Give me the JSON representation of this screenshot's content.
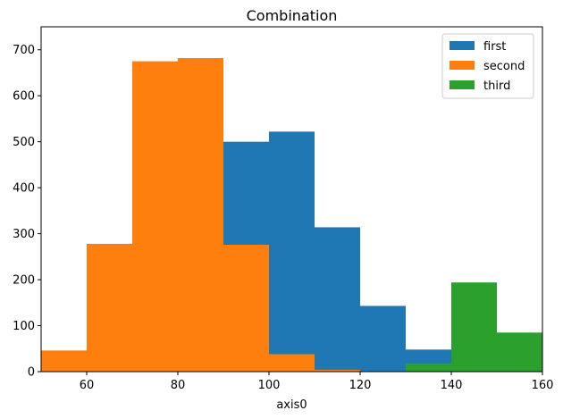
{
  "chart_data": {
    "type": "bar",
    "title": "Combination",
    "xlabel": "axis0",
    "ylabel": "",
    "xlim": [
      50,
      160
    ],
    "ylim": [
      0,
      750
    ],
    "xticks": [
      60,
      80,
      100,
      120,
      140,
      160
    ],
    "yticks": [
      0,
      100,
      200,
      300,
      400,
      500,
      600,
      700
    ],
    "grid": false,
    "legend_position": "top-right",
    "series": [
      {
        "name": "first",
        "color": "#1f77b4",
        "bins": [
          {
            "x0": 90,
            "x1": 100,
            "value": 500
          },
          {
            "x0": 100,
            "x1": 110,
            "value": 522
          },
          {
            "x0": 110,
            "x1": 120,
            "value": 314
          },
          {
            "x0": 120,
            "x1": 130,
            "value": 143
          },
          {
            "x0": 130,
            "x1": 140,
            "value": 48
          }
        ]
      },
      {
        "name": "second",
        "color": "#ff7f0e",
        "bins": [
          {
            "x0": 50,
            "x1": 60,
            "value": 46
          },
          {
            "x0": 60,
            "x1": 70,
            "value": 278
          },
          {
            "x0": 70,
            "x1": 80,
            "value": 675
          },
          {
            "x0": 80,
            "x1": 90,
            "value": 682
          },
          {
            "x0": 90,
            "x1": 100,
            "value": 276
          },
          {
            "x0": 100,
            "x1": 110,
            "value": 38
          },
          {
            "x0": 110,
            "x1": 120,
            "value": 4
          }
        ]
      },
      {
        "name": "third",
        "color": "#2ca02c",
        "bins": [
          {
            "x0": 130,
            "x1": 140,
            "value": 18
          },
          {
            "x0": 140,
            "x1": 150,
            "value": 194
          },
          {
            "x0": 150,
            "x1": 160,
            "value": 85
          }
        ]
      }
    ]
  }
}
